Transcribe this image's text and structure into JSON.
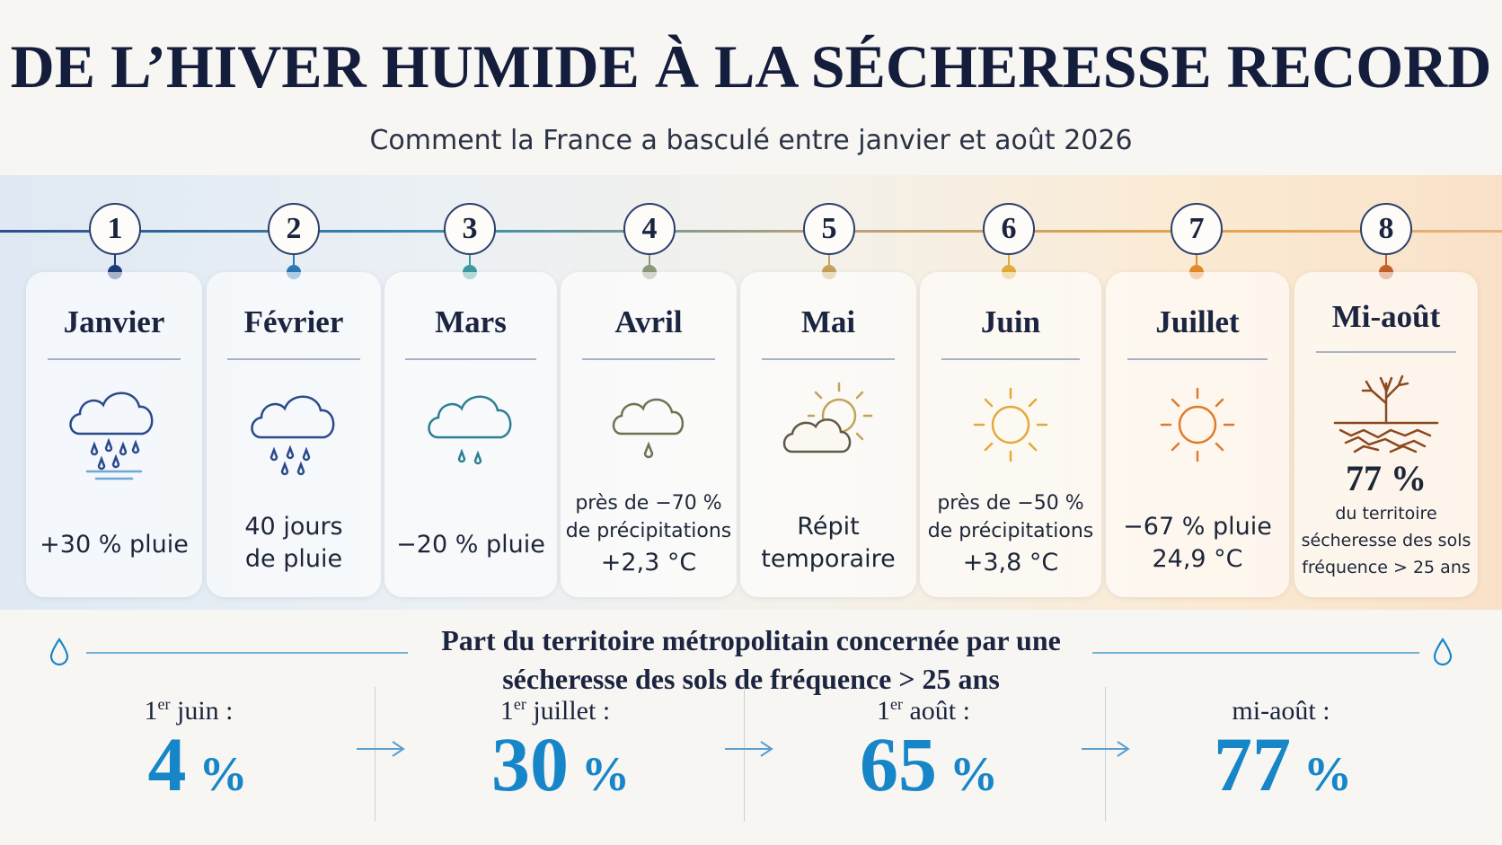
{
  "header": {
    "title": "DE L’HIVER HUMIDE À LA SÉCHERESSE RECORD",
    "subtitle": "Comment la France a basculé entre janvier et août 2026"
  },
  "colors": {
    "navy": "#1b2440",
    "accent_blue": "#1786c8",
    "step_dots": [
      "#1f3c7a",
      "#2a7ab8",
      "#3a9a9e",
      "#8a9a78",
      "#c4a25a",
      "#e3aa3c",
      "#e58a2c",
      "#c4602a"
    ]
  },
  "timeline": [
    {
      "number": "1",
      "month": "Janvier",
      "icon": "cloud-heavy-rain-icon",
      "lines": [
        "+30 % pluie"
      ]
    },
    {
      "number": "2",
      "month": "Février",
      "icon": "cloud-rain-icon",
      "lines": [
        "40 jours",
        "de pluie"
      ]
    },
    {
      "number": "3",
      "month": "Mars",
      "icon": "cloud-light-rain-icon",
      "lines": [
        "−20 % pluie"
      ]
    },
    {
      "number": "4",
      "month": "Avril",
      "icon": "cloud-drop-icon",
      "lines": [
        "près de −70 %",
        "de précipitations",
        "+2,3 °C"
      ]
    },
    {
      "number": "5",
      "month": "Mai",
      "icon": "sun-behind-cloud-icon",
      "lines": [
        "Répit",
        "temporaire"
      ]
    },
    {
      "number": "6",
      "month": "Juin",
      "icon": "sun-icon",
      "lines": [
        "près de −50 %",
        "de précipitations",
        "+3,8 °C"
      ]
    },
    {
      "number": "7",
      "month": "Juillet",
      "icon": "hot-sun-icon",
      "lines": [
        "−67 % pluie",
        "24,9 °C"
      ]
    },
    {
      "number": "8",
      "month": "Mi-août",
      "icon": "dry-tree-cracked-soil-icon",
      "lines": [
        "77 %",
        "du territoire",
        "sécheresse des sols",
        "fréquence > 25 ans"
      ]
    }
  ],
  "summary": {
    "title": "Part du territoire métropolitain concernée par une sécheresse des sols de fréquence > 25 ans",
    "stats": [
      {
        "label_main": "1",
        "label_sup": "er",
        "label_rest": " juin :",
        "value": "4",
        "unit": "%"
      },
      {
        "label_main": "1",
        "label_sup": "er",
        "label_rest": " juillet :",
        "value": "30",
        "unit": "%"
      },
      {
        "label_main": "1",
        "label_sup": "er",
        "label_rest": " août :",
        "value": "65",
        "unit": "%"
      },
      {
        "label_main": "mi-août :",
        "label_sup": "",
        "label_rest": "",
        "value": "77",
        "unit": "%"
      }
    ]
  }
}
